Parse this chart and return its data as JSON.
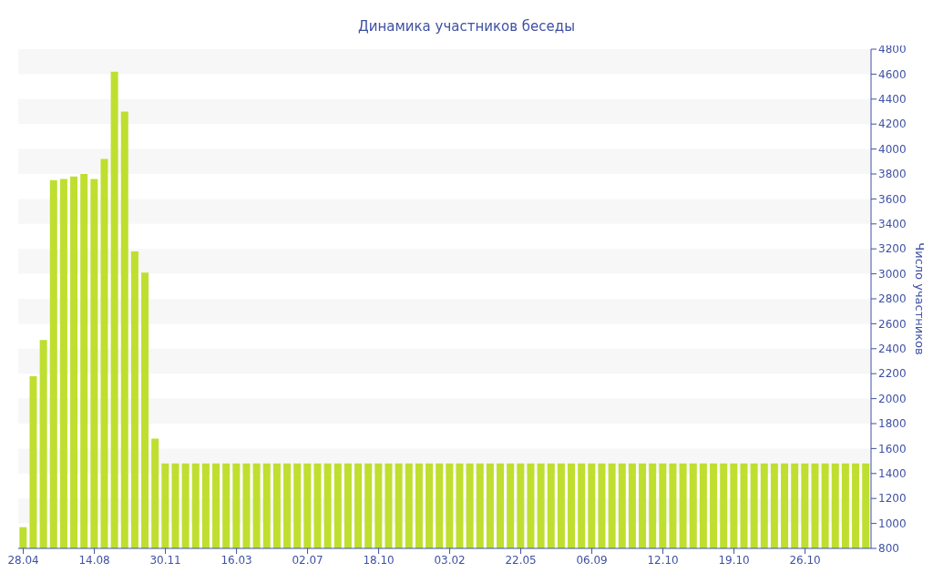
{
  "chart_data": {
    "type": "bar",
    "title": "Динамика участников беседы",
    "y2label": "Число участников",
    "categories": [
      "28.04",
      null,
      null,
      null,
      null,
      null,
      null,
      "14.08",
      null,
      null,
      null,
      null,
      null,
      null,
      "30.11",
      null,
      null,
      null,
      null,
      null,
      null,
      "16.03",
      null,
      null,
      null,
      null,
      null,
      null,
      "02.07",
      null,
      null,
      null,
      null,
      null,
      null,
      "18.10",
      null,
      null,
      null,
      null,
      null,
      null,
      "03.02",
      null,
      null,
      null,
      null,
      null,
      null,
      "22.05",
      null,
      null,
      null,
      null,
      null,
      null,
      "06.09",
      null,
      null,
      null,
      null,
      null,
      null,
      "12.10",
      null,
      null,
      null,
      null,
      null,
      null,
      "19.10",
      null,
      null,
      null,
      null,
      null,
      null,
      "26.10",
      null,
      null,
      null,
      null,
      null,
      null
    ],
    "series": [
      {
        "color": "#bedf2f",
        "axis": "y2",
        "values": [
          970,
          2180,
          2470,
          3750,
          3760,
          3780,
          3800,
          3760,
          3920,
          4620,
          4300,
          3180,
          3010,
          1680,
          1480,
          1480,
          1480,
          1480,
          1480,
          1480,
          1480,
          1480,
          1480,
          1480,
          1480,
          1480,
          1480,
          1480,
          1480,
          1480,
          1480,
          1480,
          1480,
          1480,
          1480,
          1480,
          1480,
          1480,
          1480,
          1480,
          1480,
          1480,
          1480,
          1480,
          1480,
          1480,
          1480,
          1480,
          1480,
          1480,
          1480,
          1480,
          1480,
          1480,
          1480,
          1480,
          1480,
          1480,
          1480,
          1480,
          1480,
          1480,
          1480,
          1480,
          1480,
          1480,
          1480,
          1480,
          1480,
          1480,
          1480,
          1480,
          1480,
          1480,
          1480,
          1480,
          1480,
          1480,
          1480,
          1480,
          1480,
          1480,
          1480,
          1480
        ]
      }
    ],
    "y2lim": [
      800,
      4800
    ],
    "y2ticks": [
      800,
      1000,
      1200,
      1400,
      1600,
      1800,
      2000,
      2200,
      2400,
      2600,
      2800,
      3000,
      3200,
      3400,
      3600,
      3800,
      4000,
      4200,
      4400,
      4600,
      4800
    ],
    "bands": [
      {
        "axis": "y2",
        "from": 1000,
        "to": 1200,
        "color": "#f7f7f7"
      },
      {
        "axis": "y2",
        "from": 1400,
        "to": 1600,
        "color": "#f7f7f7"
      },
      {
        "axis": "y2",
        "from": 1800,
        "to": 2000,
        "color": "#f7f7f7"
      },
      {
        "axis": "y2",
        "from": 2200,
        "to": 2400,
        "color": "#f7f7f7"
      },
      {
        "axis": "y2",
        "from": 2600,
        "to": 2800,
        "color": "#f7f7f7"
      },
      {
        "axis": "y2",
        "from": 3000,
        "to": 3200,
        "color": "#f7f7f7"
      },
      {
        "axis": "y2",
        "from": 3400,
        "to": 3600,
        "color": "#f7f7f7"
      },
      {
        "axis": "y2",
        "from": 3800,
        "to": 4000,
        "color": "#f7f7f7"
      },
      {
        "axis": "y2",
        "from": 4200,
        "to": 4400,
        "color": "#f7f7f7"
      },
      {
        "axis": "y2",
        "from": 4600,
        "to": 4800,
        "color": "#f7f7f7"
      }
    ],
    "legend": false
  }
}
